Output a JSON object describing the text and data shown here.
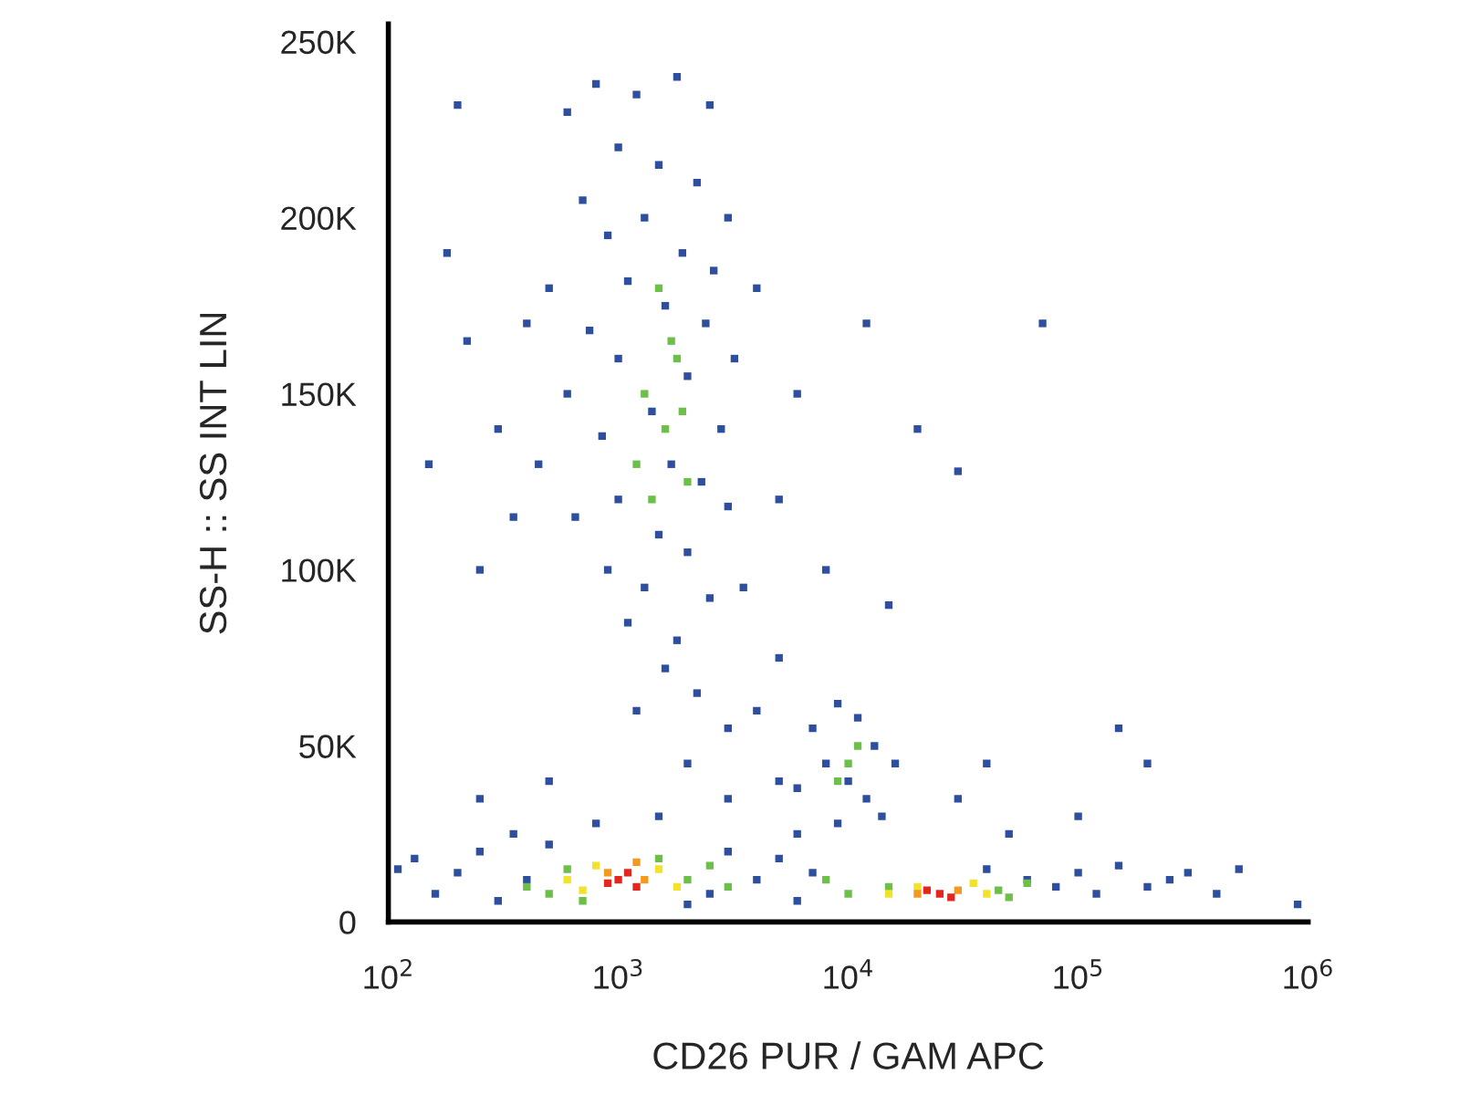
{
  "chart_data": {
    "type": "scatter",
    "xlabel": "CD26 PUR / GAM APC",
    "ylabel": "SS-H :: SS INT LIN",
    "log": "x",
    "marker": "square",
    "xlim": [
      100,
      1000000
    ],
    "xticks": [
      {
        "value": 100,
        "label": "10$^{2}$"
      },
      {
        "value": 1000,
        "label": "10$^{3}$"
      },
      {
        "value": 10000,
        "label": "10$^{4}$"
      },
      {
        "value": 100000,
        "label": "10$^{5}$"
      },
      {
        "value": 1000000,
        "label": "10$^{6}$"
      }
    ],
    "ylim": [
      0,
      255000
    ],
    "yticks": [
      {
        "value": 0,
        "label": "0"
      },
      {
        "value": 50000,
        "label": "50K"
      },
      {
        "value": 100000,
        "label": "100K"
      },
      {
        "value": 150000,
        "label": "150K"
      },
      {
        "value": 200000,
        "label": "200K"
      },
      {
        "value": 250000,
        "label": "250K"
      }
    ],
    "series": [
      {
        "color": "#2d4f9e",
        "x": [
          600,
          800,
          1200,
          1800,
          2500,
          1000,
          1500,
          2200,
          700,
          3000,
          1300,
          900,
          1900,
          2600,
          500,
          1100,
          1600,
          2400,
          750,
          3200,
          1000,
          2000,
          600,
          1400,
          2800,
          850,
          450,
          1700,
          2300,
          1000,
          3000,
          650,
          1500,
          2000,
          900,
          1300,
          2500,
          1100,
          1800,
          1600,
          2200,
          1200,
          3000,
          200,
          180,
          220,
          150,
          300,
          250,
          400,
          350,
          4000,
          6000,
          5000,
          8000,
          12000,
          20000,
          30000,
          70000,
          15000,
          5000,
          3500,
          2000,
          3000,
          1500,
          4000,
          5000,
          6000,
          800,
          500,
          250,
          7000,
          9000,
          11000,
          13000,
          8000,
          10000,
          12000,
          6000,
          14000,
          9000,
          16000,
          110,
          130,
          160,
          200,
          250,
          300,
          350,
          400,
          500,
          2000,
          3000,
          2500,
          4000,
          5000,
          6000,
          7000,
          40000,
          60000,
          80000,
          100000,
          120000,
          150000,
          200000,
          250000,
          300000,
          400000,
          500000,
          900000,
          50000,
          100000,
          200000,
          150000,
          40000,
          30000
        ],
        "values": [
          230000,
          238000,
          235000,
          240000,
          232000,
          220000,
          215000,
          210000,
          205000,
          200000,
          200000,
          195000,
          190000,
          185000,
          180000,
          182000,
          175000,
          170000,
          168000,
          160000,
          160000,
          155000,
          150000,
          145000,
          140000,
          138000,
          130000,
          130000,
          125000,
          120000,
          118000,
          115000,
          110000,
          105000,
          100000,
          95000,
          92000,
          85000,
          80000,
          72000,
          65000,
          60000,
          55000,
          232000,
          190000,
          165000,
          130000,
          140000,
          100000,
          170000,
          115000,
          180000,
          150000,
          120000,
          100000,
          170000,
          140000,
          128000,
          170000,
          90000,
          75000,
          95000,
          45000,
          35000,
          30000,
          60000,
          40000,
          25000,
          28000,
          40000,
          35000,
          55000,
          62000,
          58000,
          50000,
          45000,
          40000,
          35000,
          38000,
          30000,
          28000,
          45000,
          15000,
          18000,
          8000,
          14000,
          20000,
          6000,
          25000,
          12000,
          22000,
          5000,
          20000,
          8000,
          12000,
          18000,
          6000,
          14000,
          15000,
          12000,
          10000,
          14000,
          8000,
          16000,
          10000,
          12000,
          14000,
          8000,
          15000,
          5000,
          25000,
          30000,
          45000,
          55000,
          45000,
          35000
        ]
      },
      {
        "color": "#6cc04a",
        "x": [
          1500,
          1800,
          1300,
          1600,
          1200,
          2000,
          1700,
          1400,
          1900,
          10000,
          11000,
          9000,
          400,
          600,
          700,
          1500,
          2000,
          3000,
          2500,
          500,
          10000,
          15000,
          45000,
          50000,
          60000,
          8000
        ],
        "values": [
          180000,
          160000,
          150000,
          140000,
          130000,
          125000,
          165000,
          120000,
          145000,
          45000,
          50000,
          40000,
          10000,
          15000,
          6000,
          18000,
          12000,
          10000,
          16000,
          8000,
          8000,
          10000,
          9000,
          7000,
          11000,
          12000
        ]
      },
      {
        "color": "#f2e22c",
        "x": [
          600,
          800,
          1500,
          1800,
          700,
          15000,
          20000,
          40000,
          35000
        ],
        "values": [
          12000,
          16000,
          15000,
          10000,
          9000,
          8000,
          10000,
          8000,
          11000
        ]
      },
      {
        "color": "#f39a1e",
        "x": [
          900,
          1300,
          1200,
          20000,
          30000
        ],
        "values": [
          14000,
          12000,
          17000,
          8000,
          9000
        ]
      },
      {
        "color": "#e3261e",
        "x": [
          1000,
          1100,
          1200,
          900,
          25000,
          28000,
          22000
        ],
        "values": [
          12000,
          14000,
          10000,
          11000,
          8000,
          7000,
          9000
        ]
      }
    ]
  }
}
